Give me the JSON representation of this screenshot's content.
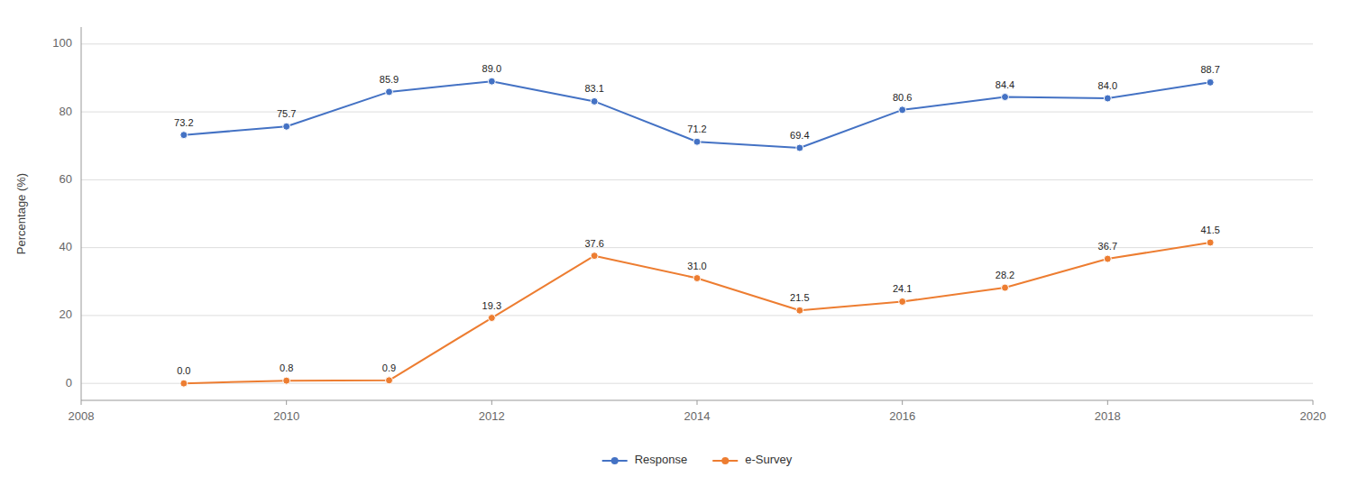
{
  "chart_data": {
    "type": "line",
    "x": [
      2009,
      2010,
      2011,
      2012,
      2013,
      2014,
      2015,
      2016,
      2017,
      2018,
      2019
    ],
    "series": [
      {
        "name": "Response",
        "color": "#4472C4",
        "values": [
          73.2,
          75.7,
          85.9,
          89.0,
          83.1,
          71.2,
          69.4,
          80.6,
          84.4,
          84.0,
          88.7
        ],
        "value_labels": [
          "73.2",
          "75.7",
          "85.9",
          "89.0",
          "83.1",
          "71.2",
          "69.4",
          "80.6",
          "84.4",
          "84.0",
          "88.7"
        ]
      },
      {
        "name": "e-Survey",
        "color": "#ED7D31",
        "values": [
          0.0,
          0.8,
          0.9,
          19.3,
          37.6,
          31.0,
          21.5,
          24.1,
          28.2,
          36.7,
          41.5
        ],
        "value_labels": [
          "0.0",
          "0.8",
          "0.9",
          "19.3",
          "37.6",
          "31.0",
          "21.5",
          "24.1",
          "28.2",
          "36.7",
          "41.5"
        ]
      }
    ],
    "y_label": "Percentage (%)",
    "xlim": [
      2008,
      2020
    ],
    "ylim": [
      -5,
      105
    ],
    "yticks": [
      0,
      20,
      40,
      60,
      80,
      100
    ],
    "xticks": [
      2008,
      2010,
      2012,
      2014,
      2016,
      2018,
      2020
    ],
    "marker": "circle",
    "grid": true,
    "legend": "bottom",
    "data_labels": true
  }
}
